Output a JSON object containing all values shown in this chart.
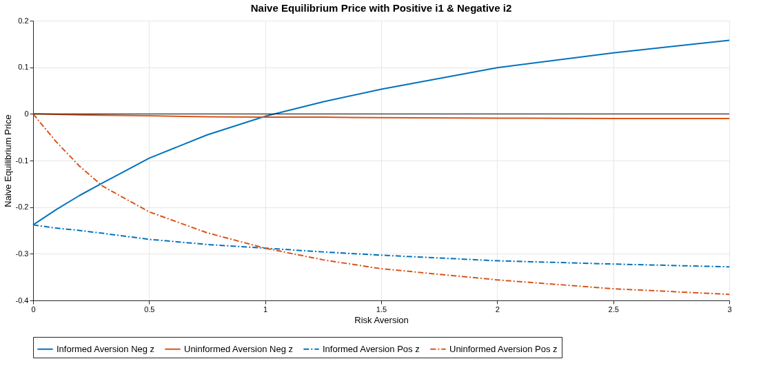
{
  "chart_data": {
    "type": "line",
    "title": "Naive Equilibrium Price with Positive i1 & Negative i2",
    "xlabel": "Risk Aversion",
    "ylabel": "Naive Equilibrium Price",
    "x": [
      0,
      0.1,
      0.2,
      0.3,
      0.5,
      0.75,
      1,
      1.25,
      1.5,
      2,
      2.5,
      3
    ],
    "series": [
      {
        "name": "Informed Aversion Neg z",
        "color": "#0072bd",
        "line_style": "solid",
        "values": [
          -0.238,
          -0.205,
          -0.175,
          -0.148,
          -0.095,
          -0.045,
          -0.005,
          0.026,
          0.053,
          0.099,
          0.131,
          0.158
        ]
      },
      {
        "name": "Uninformed Aversion Neg z",
        "color": "#d95319",
        "line_style": "solid",
        "values": [
          0,
          -0.001,
          -0.002,
          -0.003,
          -0.004,
          -0.006,
          -0.007,
          -0.007,
          -0.008,
          -0.009,
          -0.01,
          -0.01
        ]
      },
      {
        "name": "Informed Aversion Pos z",
        "color": "#0072bd",
        "line_style": "dashed",
        "values": [
          -0.238,
          -0.245,
          -0.25,
          -0.256,
          -0.269,
          -0.28,
          -0.288,
          -0.296,
          -0.303,
          -0.315,
          -0.322,
          -0.328
        ]
      },
      {
        "name": "Uninformed Aversion Pos z",
        "color": "#d95319",
        "line_style": "dashed",
        "values": [
          0,
          -0.06,
          -0.112,
          -0.155,
          -0.21,
          -0.255,
          -0.288,
          -0.313,
          -0.332,
          -0.356,
          -0.375,
          -0.387
        ]
      }
    ],
    "xlim": [
      0,
      3
    ],
    "xticks": [
      0,
      0.5,
      1,
      1.5,
      2,
      2.5,
      3
    ],
    "ylim": [
      -0.4,
      0.2
    ],
    "yticks": [
      -0.4,
      -0.3,
      -0.2,
      -0.1,
      0,
      0.1,
      0.2
    ],
    "ref_lines": [
      {
        "axis": "y",
        "value": 0,
        "color": "#000000"
      }
    ],
    "grid": true,
    "legend": "bottom",
    "marker": "none"
  }
}
